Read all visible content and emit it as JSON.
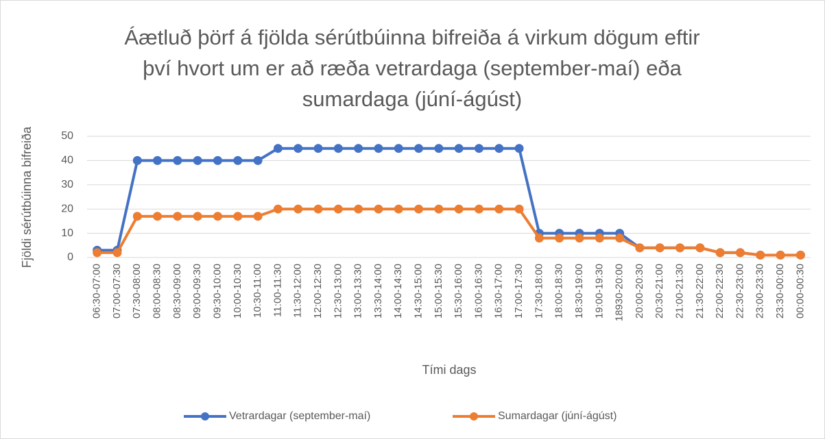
{
  "chart_data": {
    "type": "line",
    "title": [
      "Áætluð þörf á fjölda sérútbúinna bifreiða á virkum dögum eftir",
      "því hvort um er að ræða vetrardaga (september-maí) eða",
      "sumardaga (júní-ágúst)"
    ],
    "x_label": "Tími dags",
    "y_label": "Fjöldi sérútbúinna bifreiða",
    "categories": [
      "06:30-07:00",
      "07:00-07:30",
      "07:30-08:00",
      "08:00-08:30",
      "08:30-09:00",
      "09:00-09:30",
      "09:30-10:00",
      "10:00-10:30",
      "10:30-11:00",
      "11:00-11:30",
      "11:30-12:00",
      "12:00-12:30",
      "12:30-13:00",
      "13:00-13:30",
      "13:30-14:00",
      "14:00-14:30",
      "14:30-15:00",
      "15:00-15:30",
      "15:30-16:00",
      "16:00-16:30",
      "16:30-17:00",
      "17:00-17:30",
      "17:30-18:00",
      "18:00-18:30",
      "18:30-19:00",
      "19:00-19:30",
      "18930-20:00",
      "20:00-20:30",
      "20:30-21:00",
      "21:00-21:30",
      "21:30-22:00",
      "22:00-22:30",
      "22:30-23:00",
      "23:00-23:30",
      "23:30-00:00",
      "00:00-00:30"
    ],
    "series": [
      {
        "name": "Vetrardagar (september-maí)",
        "color": "#4472c4",
        "values": [
          3,
          3,
          40,
          40,
          40,
          40,
          40,
          40,
          40,
          45,
          45,
          45,
          45,
          45,
          45,
          45,
          45,
          45,
          45,
          45,
          45,
          45,
          10,
          10,
          10,
          10,
          10,
          4,
          4,
          4,
          4,
          2,
          2,
          1,
          1,
          1
        ]
      },
      {
        "name": "Sumardagar (júní-ágúst)",
        "color": "#ed7d31",
        "values": [
          2,
          2,
          17,
          17,
          17,
          17,
          17,
          17,
          17,
          20,
          20,
          20,
          20,
          20,
          20,
          20,
          20,
          20,
          20,
          20,
          20,
          20,
          8,
          8,
          8,
          8,
          8,
          4,
          4,
          4,
          4,
          2,
          2,
          1,
          1,
          1
        ]
      }
    ],
    "ylim": [
      0,
      50
    ],
    "yticks": [
      0,
      10,
      20,
      30,
      40,
      50
    ],
    "grid": true,
    "legend": "bottom"
  }
}
